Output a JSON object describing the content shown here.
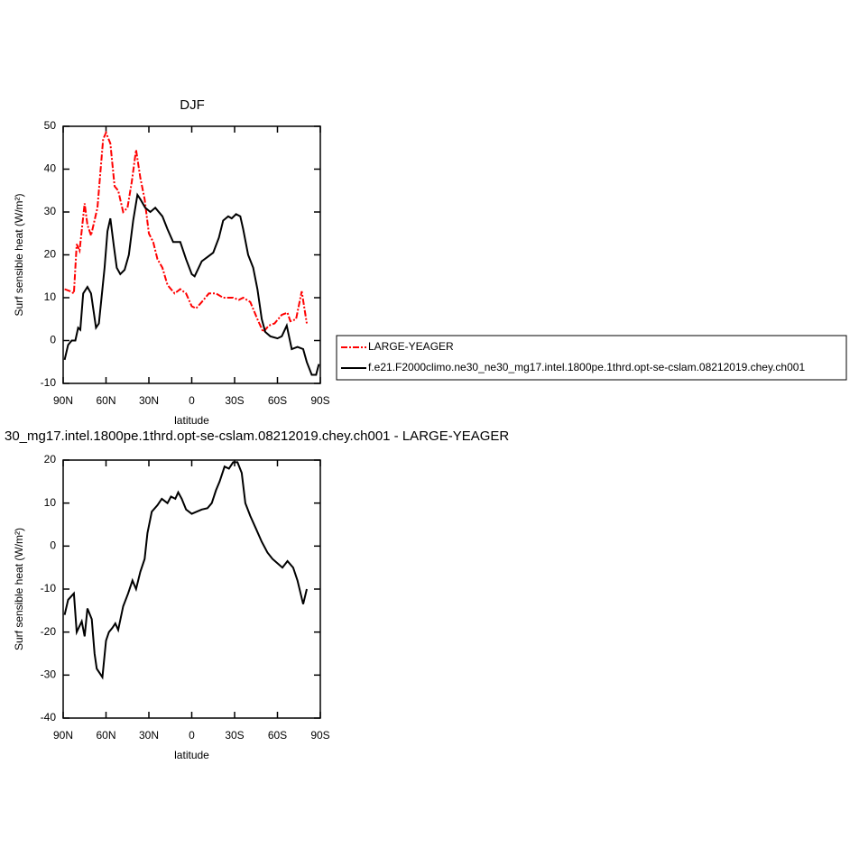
{
  "chart_data": [
    {
      "type": "line",
      "title": "DJF",
      "xlabel": "latitude",
      "ylabel": "Surf sensible heat (W/m²)",
      "xlim": [
        90,
        -90
      ],
      "ylim": [
        -10,
        50
      ],
      "xticks": [
        {
          "value": 90,
          "label": "90N"
        },
        {
          "value": 60,
          "label": "60N"
        },
        {
          "value": 30,
          "label": "30N"
        },
        0,
        {
          "value": -30,
          "label": "30S"
        },
        {
          "value": -60,
          "label": "60S"
        },
        {
          "value": -90,
          "label": "90S"
        }
      ],
      "yticks": [
        -10,
        0,
        10,
        20,
        30,
        40,
        50
      ],
      "legend": "right",
      "series": [
        {
          "name": "LARGE-YEAGER",
          "color": "#ff0000",
          "dash": "dash-dot",
          "x": [
            89,
            85,
            82.5,
            80.5,
            78.5,
            75,
            73,
            70.5,
            66,
            62,
            60,
            57,
            54,
            51.5,
            48,
            45,
            42,
            39,
            36,
            33,
            30,
            27,
            24,
            20.5,
            17,
            12,
            8,
            4,
            0,
            -3,
            -7,
            -12,
            -17,
            -22,
            -29,
            -33,
            -36,
            -41,
            -46,
            -50,
            -54,
            -58,
            -63,
            -67,
            -69,
            -73,
            -77,
            -80.5
          ],
          "values": [
            12,
            11.5,
            11,
            22.5,
            21,
            32,
            27,
            24.5,
            31,
            47,
            48.5,
            46,
            36,
            35,
            30,
            31,
            37,
            44.5,
            38,
            33,
            25,
            23,
            19,
            17,
            13,
            11,
            12,
            11,
            8,
            7.5,
            9,
            11,
            11,
            10,
            10,
            9.5,
            10,
            9,
            5,
            2,
            3.5,
            4,
            6,
            6.5,
            4.5,
            5,
            11.5,
            4
          ]
        },
        {
          "name": "f.e21.F2000climo.ne30_ne30_mg17.intel.1800pe.1thrd.opt-se-cslam.08212019.chey.ch001",
          "color": "#000000",
          "dash": "solid",
          "x": [
            89,
            86.5,
            84,
            81.5,
            79.5,
            78,
            76,
            73,
            70.5,
            67,
            65,
            62.5,
            61,
            59,
            57,
            54.5,
            52.5,
            50,
            47,
            44,
            41,
            38,
            36,
            32.5,
            29,
            25.5,
            20.5,
            17,
            13,
            8,
            4,
            0,
            -2,
            -7,
            -11,
            -15,
            -19,
            -22,
            -25.5,
            -28,
            -31,
            -34,
            -36,
            -39.5,
            -43,
            -46,
            -49,
            -51.5,
            -55,
            -60,
            -63,
            -66.5,
            -70,
            -74,
            -78,
            -80.5,
            -84,
            -87,
            -89
          ],
          "values": [
            -4.5,
            -1,
            0,
            0,
            3,
            2.5,
            11,
            12.5,
            11,
            3,
            4,
            12,
            17,
            25.5,
            28.5,
            22,
            17,
            15.5,
            16.5,
            20,
            28,
            34,
            33,
            31,
            30,
            31,
            29,
            26,
            23,
            23,
            19,
            15.5,
            15,
            18.5,
            19.5,
            20.5,
            24,
            28,
            29,
            28.5,
            29.5,
            29,
            26,
            20,
            17,
            12,
            5,
            2,
            1,
            0.5,
            1,
            3.5,
            -2,
            -1.5,
            -2,
            -5,
            -8,
            -8,
            -5.5
          ]
        }
      ]
    },
    {
      "type": "line",
      "title": "30_mg17.intel.1800pe.1thrd.opt-se-cslam.08212019.chey.ch001 - LARGE-YEAGER",
      "xlabel": "latitude",
      "ylabel": "Surf sensible heat (W/m²)",
      "xlim": [
        90,
        -90
      ],
      "ylim": [
        -40,
        20
      ],
      "xticks": [
        {
          "value": 90,
          "label": "90N"
        },
        {
          "value": 60,
          "label": "60N"
        },
        {
          "value": 30,
          "label": "30N"
        },
        0,
        {
          "value": -30,
          "label": "30S"
        },
        {
          "value": -60,
          "label": "60S"
        },
        {
          "value": -90,
          "label": "90S"
        }
      ],
      "yticks": [
        -40,
        -30,
        -20,
        -10,
        0,
        10,
        20
      ],
      "series": [
        {
          "color": "#000000",
          "dash": "solid",
          "x": [
            89,
            86.5,
            82.5,
            80.5,
            77,
            75,
            73,
            70,
            68,
            66.5,
            62.5,
            60,
            58,
            55.5,
            53.5,
            51.5,
            48,
            44.5,
            41.5,
            39,
            36,
            33,
            31,
            28,
            24,
            21,
            17,
            14.5,
            11.5,
            9.5,
            7,
            4,
            0,
            -3.5,
            -7,
            -11,
            -14,
            -17,
            -19.5,
            -23,
            -26,
            -29,
            -32,
            -35,
            -37.5,
            -41,
            -45,
            -49,
            -53,
            -56.5,
            -60,
            -63.5,
            -67,
            -71,
            -74,
            -78,
            -80.5
          ],
          "values": [
            -16,
            -12.5,
            -11,
            -20,
            -17.5,
            -21,
            -14.5,
            -17,
            -25,
            -28.5,
            -30.5,
            -22,
            -20,
            -19,
            -18,
            -19.5,
            -14,
            -11,
            -8,
            -10,
            -6,
            -3,
            3,
            8,
            9.5,
            11,
            10,
            11.5,
            11,
            12.5,
            11,
            8.5,
            7.5,
            8,
            8.5,
            8.8,
            10,
            13,
            15,
            18.5,
            18,
            19.5,
            19.5,
            17,
            10,
            7,
            4,
            1,
            -1.5,
            -3,
            -4,
            -5,
            -3.5,
            -5,
            -8,
            -13.5,
            -10
          ]
        }
      ]
    }
  ]
}
